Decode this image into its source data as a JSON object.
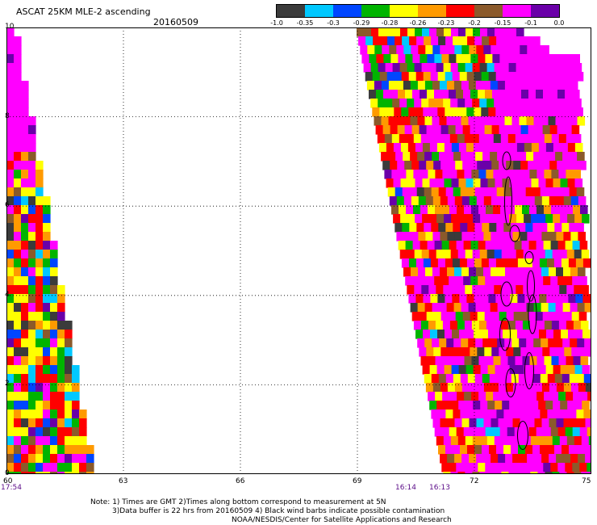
{
  "header": {
    "title": "ASCAT 25KM MLE-2 ascending",
    "date": "20160509"
  },
  "legend": {
    "labels": [
      "-1.0",
      "-0.35",
      "-0.3",
      "-0.29",
      "-0.28",
      "-0.26",
      "-0.23",
      "-0.2",
      "-0.15",
      "-0.1",
      "0.0"
    ],
    "colors": [
      "#3b3b3b",
      "#00c8ff",
      "#0046ff",
      "#00b400",
      "#ffff00",
      "#ff9a00",
      "#ff0000",
      "#8b5a2b",
      "#ff00ff",
      "#6a00a8"
    ]
  },
  "axes": {
    "x_ticks": [
      "60",
      "63",
      "66",
      "69",
      "72",
      "75"
    ],
    "y_ticks": [
      "0",
      "2",
      "4",
      "6",
      "8",
      "10"
    ]
  },
  "times": [
    "17:54",
    "16:14",
    "16:13"
  ],
  "notes": [
    "Note: 1) Times are GMT 2)Times along bottom correspond to measurement at 5N",
    "3)Data buffer is 22 hrs from 20160509 4) Black wind barbs indicate possible contamination",
    "NOAA/NESDIS/Center for Satellite Applications and Research"
  ],
  "chart_data": {
    "type": "heatmap",
    "title": "ASCAT 25KM MLE-2 ascending",
    "xlim": [
      60,
      75
    ],
    "ylim": [
      0,
      10
    ],
    "x_ticks": [
      60,
      63,
      66,
      69,
      72,
      75
    ],
    "y_ticks": [
      0,
      2,
      4,
      6,
      8,
      10
    ],
    "grid": true,
    "colorbar_categories": [
      "-1.0",
      "-0.35",
      "-0.3",
      "-0.29",
      "-0.28",
      "-0.26",
      "-0.23",
      "-0.2",
      "-0.15",
      "-0.1",
      "0.0"
    ],
    "swaths": [
      {
        "time": "17:54",
        "lon_range": [
          60,
          62.2
        ],
        "lat_range": [
          0,
          10
        ]
      },
      {
        "time": "16:14",
        "lon_range": [
          69,
          74.8
        ],
        "lat_range": [
          0,
          10
        ]
      }
    ]
  }
}
